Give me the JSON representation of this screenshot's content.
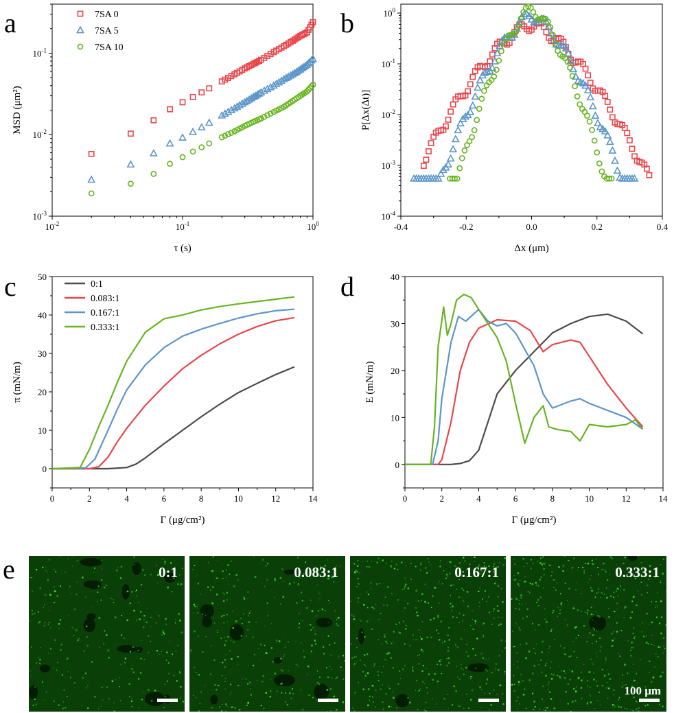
{
  "panel_letters": [
    "a",
    "b",
    "c",
    "d",
    "e"
  ],
  "colors": {
    "red": "#e8464b",
    "blue": "#5b95c9",
    "green": "#67b41f",
    "black": "#4a4a4a"
  },
  "chart_data": [
    {
      "id": "a",
      "type": "scatter",
      "xscale": "log",
      "yscale": "log",
      "xlabel": "τ (s)",
      "ylabel": "MSD (μm²)",
      "xlim": [
        0.01,
        1
      ],
      "ylim": [
        0.001,
        0.4
      ],
      "xticks": [
        "10-2",
        "10-1",
        "100"
      ],
      "yticks": [
        "10-3",
        "10-2",
        "10-1"
      ],
      "legend": "top-left",
      "series": [
        {
          "name": "7SA 0",
          "marker": "square",
          "color": "#e8464b",
          "x": [
            0.02,
            0.04,
            0.06,
            0.08,
            0.1,
            0.12,
            0.14,
            0.16,
            0.2,
            0.25,
            0.3,
            0.35,
            0.4,
            0.5,
            0.6,
            0.7,
            0.8,
            0.9,
            1.0
          ],
          "y": [
            0.0058,
            0.0103,
            0.015,
            0.0205,
            0.025,
            0.029,
            0.033,
            0.037,
            0.045,
            0.055,
            0.065,
            0.074,
            0.083,
            0.103,
            0.122,
            0.142,
            0.163,
            0.18,
            0.24
          ]
        },
        {
          "name": "7SA 5",
          "marker": "triangle",
          "color": "#5b95c9",
          "x": [
            0.02,
            0.04,
            0.06,
            0.08,
            0.1,
            0.12,
            0.14,
            0.16,
            0.2,
            0.25,
            0.3,
            0.35,
            0.4,
            0.5,
            0.6,
            0.7,
            0.8,
            0.9,
            1.0
          ],
          "y": [
            0.0028,
            0.0043,
            0.0059,
            0.0078,
            0.0092,
            0.0108,
            0.0123,
            0.014,
            0.0172,
            0.021,
            0.025,
            0.029,
            0.033,
            0.04,
            0.048,
            0.055,
            0.063,
            0.072,
            0.085
          ]
        },
        {
          "name": "7SA 10",
          "marker": "circle",
          "color": "#67b41f",
          "x": [
            0.02,
            0.04,
            0.06,
            0.08,
            0.1,
            0.12,
            0.14,
            0.16,
            0.2,
            0.25,
            0.3,
            0.35,
            0.4,
            0.5,
            0.6,
            0.7,
            0.8,
            0.9,
            1.0
          ],
          "y": [
            0.0019,
            0.0025,
            0.0033,
            0.0044,
            0.0053,
            0.0062,
            0.007,
            0.0078,
            0.0093,
            0.011,
            0.0128,
            0.0144,
            0.0158,
            0.019,
            0.022,
            0.026,
            0.03,
            0.034,
            0.041
          ]
        }
      ]
    },
    {
      "id": "b",
      "type": "scatter",
      "yscale": "log",
      "xlabel": "Δx (μm)",
      "ylabel": "P[Δx(Δt)]",
      "xlim": [
        -0.4,
        0.4
      ],
      "ylim": [
        0.0001,
        1.5
      ],
      "xticks": [
        "-0.4",
        "-0.2",
        "0.0",
        "0.2",
        "0.4"
      ],
      "yticks": [
        "10-4",
        "10-3",
        "10-2",
        "10-1",
        "100"
      ],
      "series": [
        {
          "name": "7SA 0",
          "marker": "square",
          "color": "#e8464b",
          "sigma": 0.105,
          "peak": 0.6,
          "xmin": -0.33,
          "xmax": 0.36,
          "floor": 0.00045
        },
        {
          "name": "7SA 5",
          "marker": "triangle",
          "color": "#5b95c9",
          "sigma": 0.078,
          "peak": 0.9,
          "xmin": -0.36,
          "xmax": 0.32,
          "floor": 0.00055
        },
        {
          "name": "7SA 10",
          "marker": "circle",
          "color": "#67b41f",
          "sigma": 0.062,
          "peak": 1.2,
          "xmin": -0.25,
          "xmax": 0.25,
          "floor": 0.00055
        }
      ]
    },
    {
      "id": "c",
      "type": "line",
      "xlabel": "Γ (μg/cm²)",
      "ylabel": "π (mN/m)",
      "xlim": [
        0,
        14
      ],
      "ylim": [
        -5,
        50
      ],
      "xticks": [
        "0",
        "2",
        "4",
        "6",
        "8",
        "10",
        "12",
        "14"
      ],
      "yticks": [
        "0",
        "10",
        "20",
        "30",
        "40",
        "50"
      ],
      "legend": "top-left",
      "series": [
        {
          "name": "0:1",
          "color": "#4a4a4a",
          "x": [
            0,
            2,
            3,
            4,
            4.5,
            5,
            6,
            7,
            8,
            9,
            10,
            11,
            12,
            13
          ],
          "y": [
            0,
            0,
            0,
            0.3,
            1.2,
            2.8,
            6.5,
            10,
            13.5,
            16.8,
            19.8,
            22.2,
            24.5,
            26.5
          ]
        },
        {
          "name": "0.083:1",
          "color": "#e8464b",
          "x": [
            0,
            2,
            2.5,
            3,
            3.5,
            4,
            5,
            6,
            7,
            8,
            9,
            10,
            11,
            12,
            13
          ],
          "y": [
            0,
            0,
            0.5,
            3,
            7,
            10.5,
            16.5,
            21.5,
            26,
            29.5,
            32.5,
            35,
            37,
            38.5,
            39.3
          ]
        },
        {
          "name": "0.167:1",
          "color": "#5b95c9",
          "x": [
            0,
            1.8,
            2.3,
            3,
            3.5,
            4,
            5,
            6,
            7,
            8,
            9,
            10,
            11,
            12,
            13
          ],
          "y": [
            0,
            0.2,
            2.5,
            10,
            15.5,
            20.5,
            27,
            31.5,
            34.5,
            36.3,
            37.8,
            39.2,
            40.3,
            41.1,
            41.5
          ]
        },
        {
          "name": "0.333:1",
          "color": "#67b41f",
          "x": [
            0,
            1.5,
            2,
            2.5,
            3,
            3.5,
            4,
            5,
            6,
            7,
            8,
            9,
            10,
            11,
            12,
            13
          ],
          "y": [
            0,
            0.3,
            5,
            11,
            16.5,
            22.5,
            28,
            35.5,
            39,
            40,
            41.3,
            42.2,
            42.9,
            43.5,
            44.1,
            44.7
          ]
        }
      ]
    },
    {
      "id": "d",
      "type": "line",
      "xlabel": "Γ (μg/cm²)",
      "ylabel": "E (mN/m)",
      "xlim": [
        0,
        14
      ],
      "ylim": [
        -5,
        40
      ],
      "xticks": [
        "0",
        "2",
        "4",
        "6",
        "8",
        "10",
        "12",
        "14"
      ],
      "yticks": [
        "0",
        "10",
        "20",
        "30",
        "40"
      ],
      "series": [
        {
          "name": "0:1",
          "color": "#4a4a4a",
          "x": [
            0,
            2.5,
            3,
            3.5,
            4,
            4.5,
            5,
            6,
            7,
            8,
            9,
            10,
            11,
            12,
            12.9
          ],
          "y": [
            0,
            0,
            0.2,
            0.8,
            3,
            9,
            15,
            20,
            24,
            28,
            30,
            31.5,
            32,
            30.5,
            27.8
          ]
        },
        {
          "name": "0.083:1",
          "color": "#e8464b",
          "x": [
            0,
            1.8,
            2,
            2.5,
            3,
            3.5,
            4,
            5,
            6,
            6.8,
            7.5,
            8,
            8.5,
            9,
            9.5,
            10,
            11,
            12,
            12.9
          ],
          "y": [
            0,
            0,
            1,
            9,
            20,
            26,
            29,
            30.8,
            30.5,
            28.5,
            24,
            25.5,
            26,
            26.5,
            26,
            23,
            17,
            12,
            8
          ]
        },
        {
          "name": "0.167:1",
          "color": "#5b95c9",
          "x": [
            0,
            1.5,
            1.8,
            2,
            2.5,
            2.9,
            3.3,
            4,
            4.5,
            5,
            5.5,
            6,
            7,
            7.5,
            8,
            9,
            9.5,
            10,
            11,
            12,
            12.9
          ],
          "y": [
            0,
            0,
            5,
            14,
            26,
            31.5,
            30.5,
            33,
            30.5,
            29.5,
            30,
            28,
            21,
            15,
            12,
            13.5,
            14,
            13,
            11.5,
            10,
            7.5
          ]
        },
        {
          "name": "0.333:1",
          "color": "#67b41f",
          "x": [
            0,
            1.4,
            1.6,
            1.8,
            2.1,
            2.3,
            2.5,
            2.8,
            3.2,
            3.6,
            4,
            5,
            5.5,
            6,
            6.5,
            7,
            7.5,
            7.8,
            8.2,
            9,
            9.5,
            10,
            11,
            12,
            12.5,
            12.9
          ],
          "y": [
            0,
            0,
            8,
            25,
            33.5,
            27.5,
            30,
            35,
            36.2,
            35.5,
            33,
            27,
            22,
            13,
            4.5,
            10,
            12.5,
            8,
            7.5,
            7,
            5,
            8.5,
            8,
            8.5,
            9.5,
            7.5
          ]
        }
      ]
    }
  ],
  "micrographs": [
    {
      "label": "0:1",
      "scale_text": ""
    },
    {
      "label": "0.083:1",
      "scale_text": ""
    },
    {
      "label": "0.167:1",
      "scale_text": ""
    },
    {
      "label": "0.333:1",
      "scale_text": "100 μm"
    }
  ]
}
